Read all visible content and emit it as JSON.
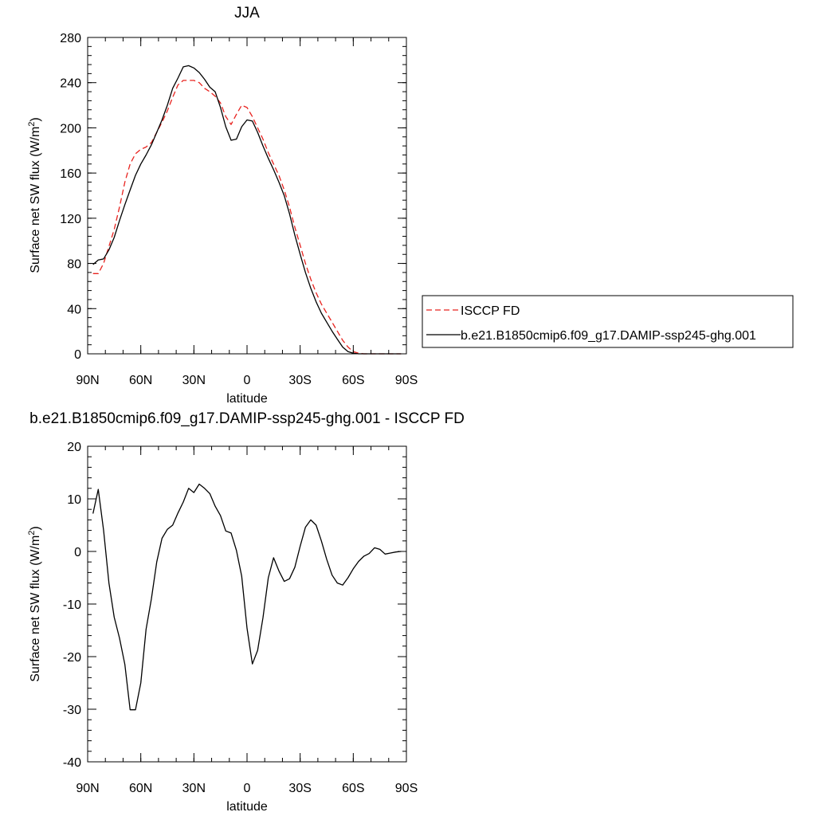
{
  "chart_data": [
    {
      "type": "line",
      "title": "JJA",
      "xlabel": "latitude",
      "ylabel": "Surface net SW flux (W/m",
      "ylabel_sup": "2",
      "ylabel_end": ")",
      "xlim": [
        90,
        -90
      ],
      "ylim": [
        0,
        280
      ],
      "x_ticks": [
        90,
        60,
        30,
        0,
        -30,
        -60,
        -90
      ],
      "x_tick_labels": [
        "90N",
        "60N",
        "30N",
        "0",
        "30S",
        "60S",
        "90S"
      ],
      "y_ticks": [
        0,
        40,
        80,
        120,
        160,
        200,
        240,
        280
      ],
      "y_tick_labels": [
        "0",
        "40",
        "80",
        "120",
        "160",
        "200",
        "240",
        "280"
      ],
      "legend_position": "right",
      "legend": [
        {
          "name": "ISCCP FD",
          "color": "#e8231f",
          "dash": "dashed"
        },
        {
          "name": "b.e21.B1850cmip6.f09_g17.DAMIP-ssp245-ghg.001",
          "color": "#000000",
          "dash": "solid"
        }
      ],
      "series": [
        {
          "name": "ISCCP FD",
          "color": "#e8231f",
          "dash": "dashed",
          "x": [
            87,
            84,
            81,
            78,
            75,
            72,
            69,
            66,
            63,
            60,
            57,
            54,
            51,
            48,
            45,
            42,
            39,
            36,
            33,
            30,
            27,
            24,
            21,
            18,
            15,
            12,
            9,
            6,
            3,
            0,
            -3,
            -6,
            -9,
            -12,
            -15,
            -18,
            -21,
            -24,
            -27,
            -30,
            -33,
            -36,
            -39,
            -42,
            -45,
            -48,
            -51,
            -54,
            -57,
            -60,
            -63,
            -66,
            -69,
            -72,
            -75,
            -78,
            -81,
            -84,
            -87
          ],
          "y": [
            71,
            71,
            80,
            95,
            110,
            130,
            152,
            168,
            177,
            181,
            183,
            187,
            196,
            205,
            215,
            227,
            238,
            242,
            242,
            242,
            240,
            235,
            232,
            228,
            222,
            210,
            203,
            212,
            220,
            218,
            210,
            200,
            190,
            178,
            168,
            158,
            145,
            130,
            112,
            96,
            80,
            66,
            54,
            44,
            36,
            28,
            20,
            12,
            6,
            2,
            0.5,
            0,
            0,
            0,
            0,
            0,
            0,
            0,
            0
          ]
        },
        {
          "name": "b.e21.B1850cmip6.f09_g17.DAMIP-ssp245-ghg.001",
          "color": "#000000",
          "dash": "solid",
          "x": [
            87,
            84,
            81,
            78,
            75,
            72,
            69,
            66,
            63,
            60,
            57,
            54,
            51,
            48,
            45,
            42,
            39,
            36,
            33,
            30,
            27,
            24,
            21,
            18,
            15,
            12,
            9,
            6,
            3,
            0,
            -3,
            -6,
            -9,
            -12,
            -15,
            -18,
            -21,
            -24,
            -27,
            -30,
            -33,
            -36,
            -39,
            -42,
            -45,
            -48,
            -51,
            -54,
            -57,
            -60,
            -63,
            -66,
            -69,
            -72,
            -75,
            -78,
            -81,
            -84,
            -87
          ],
          "y": [
            79,
            83,
            84,
            92,
            103,
            118,
            132,
            145,
            158,
            168,
            176,
            185,
            196,
            207,
            220,
            235,
            244,
            254,
            255,
            253,
            249,
            243,
            236,
            232,
            218,
            201,
            189,
            190,
            201,
            207,
            206,
            196,
            184,
            173,
            163,
            152,
            140,
            124,
            105,
            88,
            72,
            58,
            46,
            36,
            28,
            20,
            13,
            6,
            2,
            0.5,
            0,
            0,
            0,
            0,
            0,
            0,
            0,
            0,
            0
          ]
        }
      ]
    },
    {
      "type": "line",
      "title": "b.e21.B1850cmip6.f09_g17.DAMIP-ssp245-ghg.001 - ISCCP FD",
      "xlabel": "latitude",
      "ylabel": "Surface net SW flux (W/m",
      "ylabel_sup": "2",
      "ylabel_end": ")",
      "xlim": [
        90,
        -90
      ],
      "ylim": [
        -40,
        20
      ],
      "x_ticks": [
        90,
        60,
        30,
        0,
        -30,
        -60,
        -90
      ],
      "x_tick_labels": [
        "90N",
        "60N",
        "30N",
        "0",
        "30S",
        "60S",
        "90S"
      ],
      "y_ticks": [
        -40,
        -30,
        -20,
        -10,
        0,
        10,
        20
      ],
      "y_tick_labels": [
        "-40",
        "-30",
        "-20",
        "-10",
        "0",
        "10",
        "20"
      ],
      "series": [
        {
          "color": "#000000",
          "dash": "solid",
          "x": [
            87,
            84,
            81,
            78,
            75,
            72,
            69,
            66,
            63,
            60,
            57,
            54,
            51,
            48,
            45,
            42,
            39,
            36,
            33,
            30,
            27,
            24,
            21,
            18,
            15,
            12,
            9,
            6,
            3,
            0,
            -3,
            -6,
            -9,
            -12,
            -15,
            -18,
            -21,
            -24,
            -27,
            -30,
            -33,
            -36,
            -39,
            -42,
            -45,
            -48,
            -51,
            -54,
            -57,
            -60,
            -63,
            -66,
            -69,
            -72,
            -75,
            -78,
            -81,
            -84,
            -87
          ],
          "y": [
            7.2,
            11.8,
            4.0,
            -6.0,
            -12.5,
            -16.5,
            -21.5,
            -30.1,
            -30.1,
            -25.0,
            -14.8,
            -9.0,
            -2.0,
            2.5,
            4.2,
            5.0,
            7.3,
            9.4,
            12.0,
            11.2,
            12.8,
            12.0,
            11.0,
            8.6,
            6.8,
            3.9,
            3.5,
            0.2,
            -4.7,
            -14.6,
            -21.4,
            -18.8,
            -12.6,
            -5.0,
            -1.2,
            -3.7,
            -5.7,
            -5.2,
            -3.0,
            1.0,
            4.6,
            6.0,
            5.0,
            2.0,
            -1.5,
            -4.5,
            -6.0,
            -6.4,
            -5.0,
            -3.3,
            -1.9,
            -0.9,
            -0.4,
            0.7,
            0.4,
            -0.5,
            -0.3,
            -0.1,
            0.0
          ]
        }
      ]
    }
  ]
}
